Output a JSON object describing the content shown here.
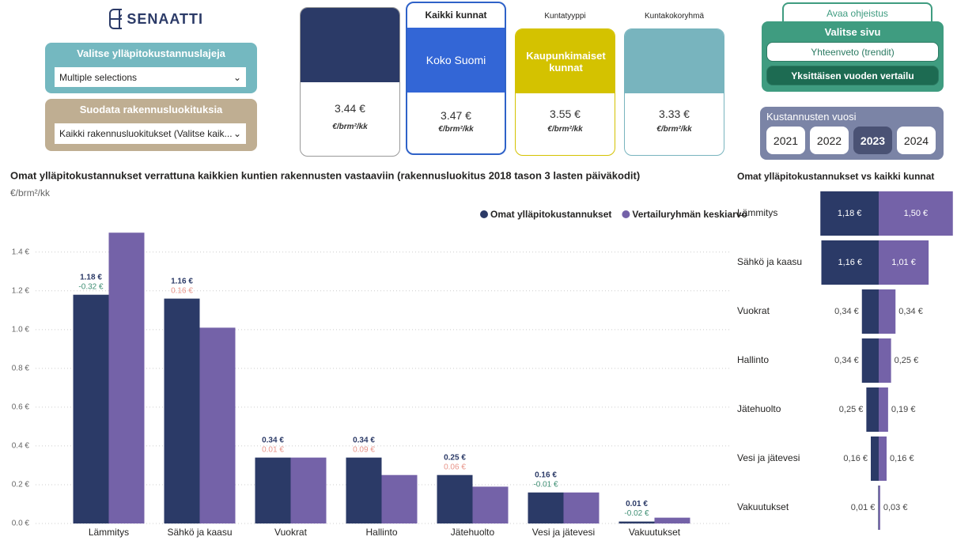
{
  "header": {
    "logo": "SENAATTI"
  },
  "filters": [
    {
      "title": "Valitse ylläpitokustannuslajeja",
      "value": "Multiple selections"
    },
    {
      "title": "Suodata rakennusluokituksia",
      "value": "Kaikki rakennusluokitukset (Valitse kaik..."
    }
  ],
  "cards": [
    {
      "value": "3.44 €",
      "unit": "€/brm²/kk"
    },
    {
      "header": "Kaikki kunnat",
      "label": "Koko Suomi",
      "value": "3.47 €",
      "unit": "€/brm²/kk"
    },
    {
      "header": "Kuntatyyppi",
      "label": "Kaupunkimaiset kunnat",
      "value": "3.55 €",
      "unit": "€/brm²/kk"
    },
    {
      "header": "Kuntakokoryhmä",
      "value": "3.33 €",
      "unit": "€/brm²/kk"
    }
  ],
  "navigation": {
    "help": "Avaa ohjeistus",
    "title": "Valitse sivu",
    "pages": [
      "Yhteenveto (trendit)",
      "Yksittäisen vuoden vertailu"
    ],
    "active": 1
  },
  "year_slicer": {
    "title": "Kustannusten vuosi",
    "options": [
      "2021",
      "2022",
      "2023",
      "2024"
    ],
    "selected": 2
  },
  "chart_data": [
    {
      "type": "bar",
      "title": "Omat ylläpitokustannukset verrattuna kaikkien kuntien rakennusten vastaaviin (rakennusluokitus 2018 tason 3 lasten päiväkodit)",
      "y_label": "€/brm²/kk",
      "categories": [
        "Lämmitys",
        "Sähkö ja kaasu",
        "Vuokrat",
        "Hallinto",
        "Jätehuolto",
        "Vesi ja jätevesi",
        "Vakuutukset"
      ],
      "series": [
        {
          "name": "Omat ylläpitokustannukset",
          "color": "#2b3a67",
          "values": [
            1.18,
            1.16,
            0.34,
            0.34,
            0.25,
            0.16,
            0.01
          ],
          "value_labels": [
            "1.18 €",
            "1.16 €",
            "0.34 €",
            "0.34 €",
            "0.25 €",
            "0.16 €",
            "0.01 €"
          ]
        },
        {
          "name": "Vertailuryhmän keskiarvo",
          "color": "#7462a8",
          "values": [
            1.5,
            1.01,
            0.34,
            0.25,
            0.19,
            0.16,
            0.03
          ]
        }
      ],
      "differences": {
        "values": [
          -0.32,
          0.16,
          0.01,
          0.09,
          0.06,
          -0.01,
          -0.02
        ],
        "value_labels": [
          "-0.32 €",
          "0.16 €",
          "0.01 €",
          "0.09 €",
          "0.06 €",
          "-0.01 €",
          "-0.02 €"
        ],
        "negative_color": "#3f8f74",
        "positive_color": "#e8958a"
      },
      "ylim": [
        0,
        1.55
      ],
      "yticks": [
        {
          "value": 0,
          "label": "0.0 €"
        },
        {
          "value": 0.2,
          "label": "0.2 €"
        },
        {
          "value": 0.4,
          "label": "0.4 €"
        },
        {
          "value": 0.6,
          "label": "0.6 €"
        },
        {
          "value": 0.8,
          "label": "0.8 €"
        },
        {
          "value": 1.0,
          "label": "1.0 €"
        },
        {
          "value": 1.2,
          "label": "1.2 €"
        },
        {
          "value": 1.4,
          "label": "1.4 €"
        }
      ],
      "grid": true,
      "legend": "top-right"
    },
    {
      "type": "diverging-bar",
      "title": "Omat ylläpitokustannukset vs kaikki kunnat",
      "categories": [
        "Lämmitys",
        "Sähkö ja kaasu",
        "Vuokrat",
        "Hallinto",
        "Jätehuolto",
        "Vesi ja jätevesi",
        "Vakuutukset"
      ],
      "series": [
        {
          "name": "Omat ylläpitokustannukset",
          "color": "#2b3a67",
          "values": [
            1.18,
            1.16,
            0.34,
            0.34,
            0.25,
            0.16,
            0.01
          ],
          "value_labels": [
            "1,18 €",
            "1,16 €",
            "0,34 €",
            "0,34 €",
            "0,25 €",
            "0,16 €",
            "0,01 €"
          ]
        },
        {
          "name": "Vertailuryhmän keskiarvo",
          "color": "#7462a8",
          "values": [
            1.5,
            1.01,
            0.34,
            0.25,
            0.19,
            0.16,
            0.03
          ],
          "value_labels": [
            "1,50 €",
            "1,01 €",
            "0,34 €",
            "0,25 €",
            "0,19 €",
            "0,16 €",
            "0,03 €"
          ]
        }
      ]
    }
  ]
}
